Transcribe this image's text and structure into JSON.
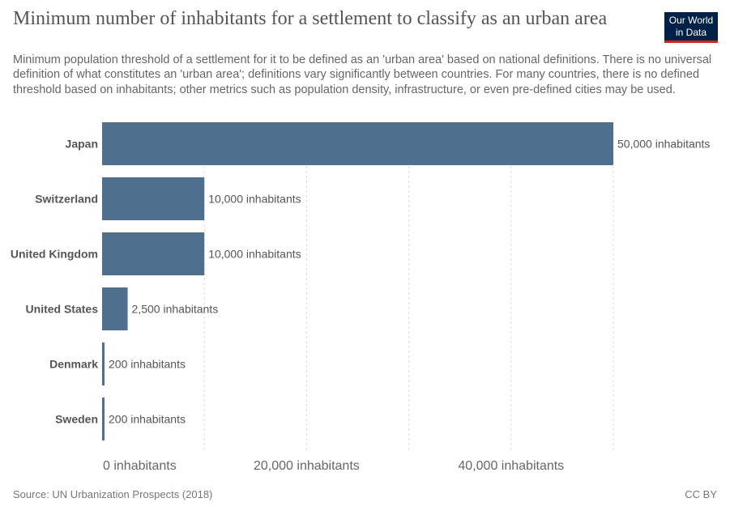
{
  "header": {
    "title": "Minimum number of inhabitants for a settlement to classify as an urban area",
    "subtitle": "Minimum population threshold of a settlement for it to be defined as an 'urban area' based on national definitions. There is no universal definition of what constitutes an 'urban area'; definitions vary significantly between countries. For many countries, there is no defined threshold based on inhabitants; other metrics such as population density, infrastructure, or even pre-defined cities may be used."
  },
  "logo": {
    "line1": "Our World",
    "line2": "in Data"
  },
  "footer": {
    "source": "Source: UN Urbanization Prospects (2018)",
    "license": "CC BY"
  },
  "colors": {
    "bar": "#4e6f8e",
    "grid": "#dddddd",
    "label": "#555555"
  },
  "chart_data": {
    "type": "bar",
    "orientation": "horizontal",
    "categories": [
      "Japan",
      "Switzerland",
      "United Kingdom",
      "United States",
      "Denmark",
      "Sweden"
    ],
    "values": [
      50000,
      10000,
      10000,
      2500,
      200,
      200
    ],
    "value_labels": [
      "50,000 inhabitants",
      "10,000 inhabitants",
      "10,000 inhabitants",
      "2,500 inhabitants",
      "200 inhabitants",
      "200 inhabitants"
    ],
    "xlim": [
      0,
      50000
    ],
    "gridlines": [
      0,
      10000,
      20000,
      30000,
      40000,
      50000
    ],
    "x_ticks": [
      0,
      20000,
      40000
    ],
    "x_tick_labels": [
      "0 inhabitants",
      "20,000 inhabitants",
      "40,000 inhabitants"
    ],
    "grid": true
  }
}
